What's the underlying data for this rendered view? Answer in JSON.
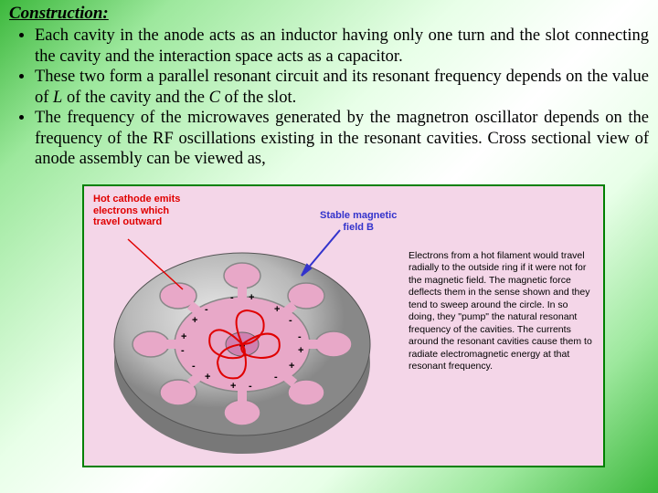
{
  "heading": "Construction:",
  "bullets": {
    "b1_a": "Each cavity in the anode acts as an inductor having only one turn and the slot connecting the cavity and the interaction space acts as a capacitor.",
    "b2_a": "These two form a parallel resonant circuit and its resonant frequency depends on the value of ",
    "b2_L": "L",
    "b2_b": " of the cavity and the ",
    "b2_C": "C",
    "b2_c": " of the slot.",
    "b3_a": "The frequency of the microwaves generated by the magnetron oscillator depends on the frequency of the RF oscillations existing in the resonant cavities. ",
    "b3_b": "Cross sectional view of  anode  assembly can be  viewed as,"
  },
  "figure": {
    "cathode_label": "Hot cathode emits\nelectrons which\ntravel outward",
    "field_label": "Stable magnetic\nfield B",
    "description": "Electrons from a hot filament would travel radially to the outside ring if it were not for the magnetic field. The magnetic force deflects them in the sense shown and they tend to sweep around the circle. In so doing, they \"pump\" the natural resonant frequency of the cavities. The currents around the resonant cavities cause them to radiate electromagnetic energy at that resonant frequency.",
    "colors": {
      "anode_fill": "#bfbfbf",
      "anode_edge": "#5a5a5a",
      "cavity_fill": "#e8a8c8",
      "cathode_fill": "#d080b0",
      "electron_path": "#e00000",
      "field_arrow": "#3333cc",
      "charge_text": "#000000"
    }
  }
}
